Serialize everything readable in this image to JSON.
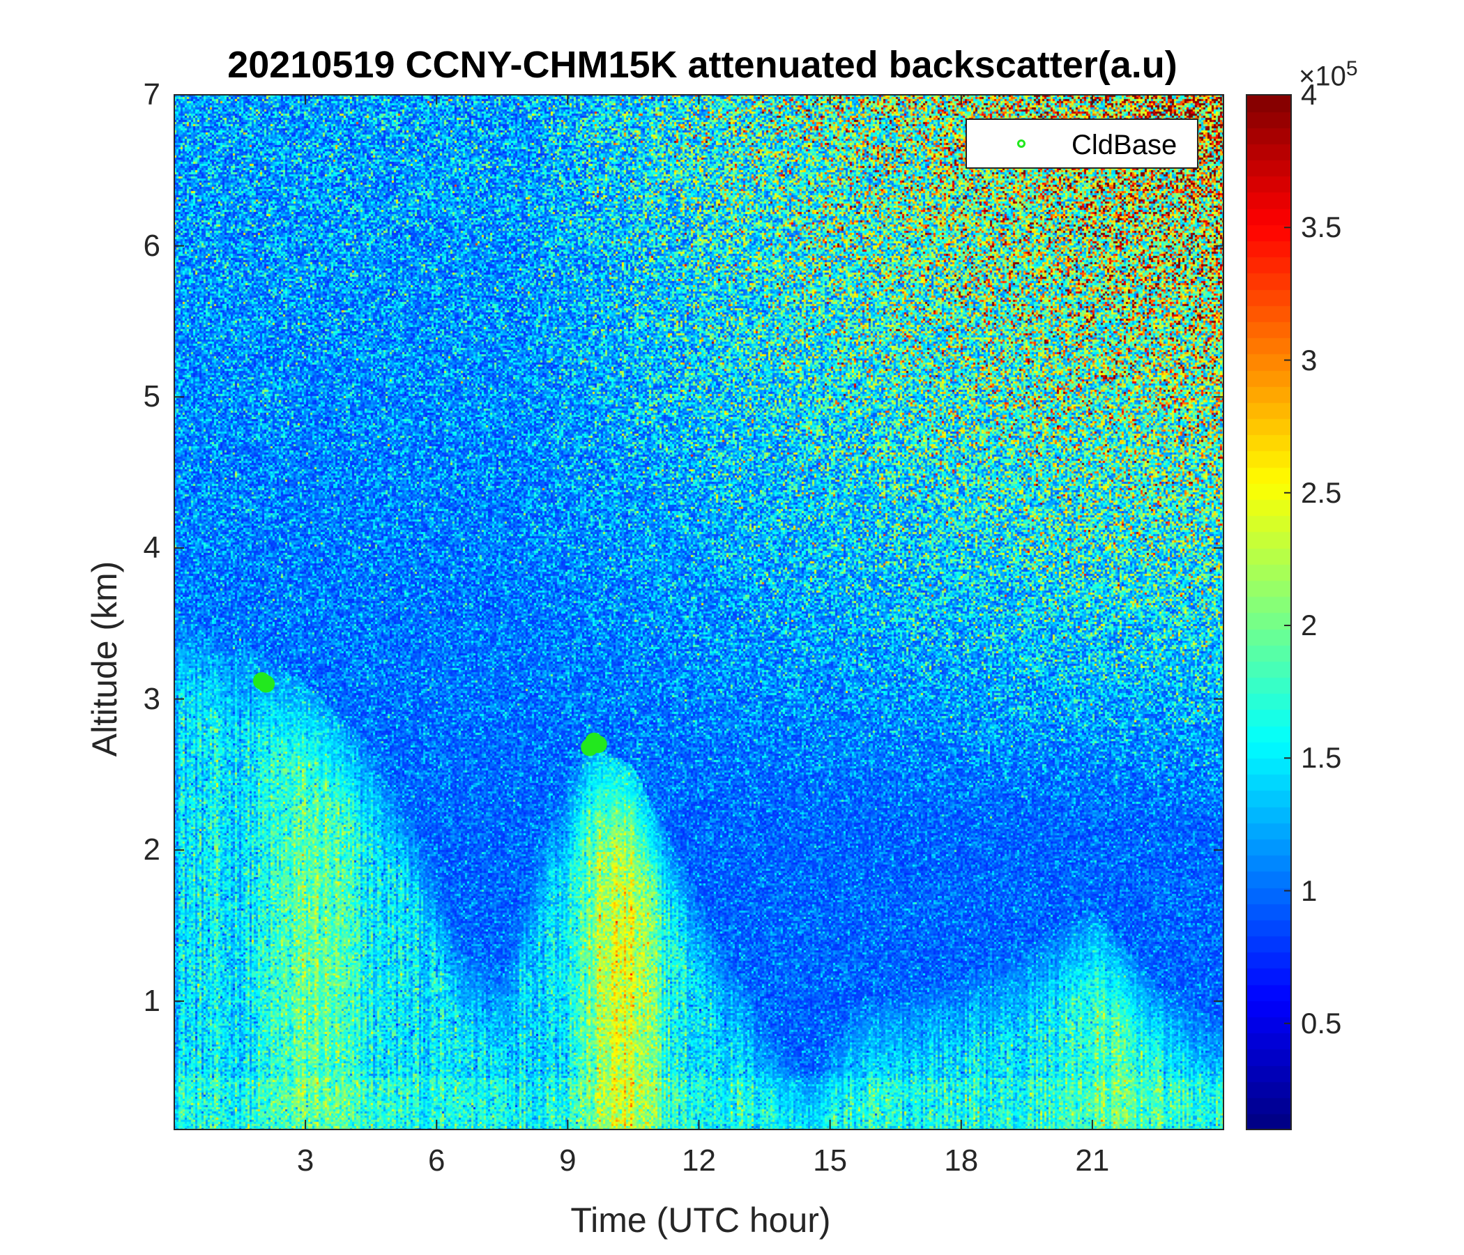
{
  "chart_data": {
    "type": "heatmap",
    "title": "20210519 CCNY-CHM15K attenuated backscatter(a.u)",
    "xlabel": "Time (UTC hour)",
    "ylabel": "Altitude (km)",
    "xlim": [
      0,
      24
    ],
    "ylim": [
      0.15,
      7
    ],
    "x_ticks": [
      3,
      6,
      9,
      12,
      15,
      18,
      21
    ],
    "x_tick_labels": [
      "3",
      "6",
      "9",
      "12",
      "15",
      "18",
      "21"
    ],
    "y_ticks": [
      1,
      2,
      3,
      4,
      5,
      6,
      7
    ],
    "y_tick_labels": [
      "1",
      "2",
      "3",
      "4",
      "5",
      "6",
      "7"
    ],
    "colorbar": {
      "colormap": "jet",
      "clim": [
        0.1,
        4
      ],
      "ticks": [
        0.5,
        1,
        1.5,
        2,
        2.5,
        3,
        3.5,
        4
      ],
      "tick_labels": [
        "0.5",
        "1",
        "1.5",
        "2",
        "2.5",
        "3",
        "3.5",
        "4"
      ],
      "exponent_label": "×10",
      "exponent_power": "5"
    },
    "aerosol_layer_top_km": [
      {
        "x": 0,
        "y": 3.6
      },
      {
        "x": 2,
        "y": 3.3
      },
      {
        "x": 3,
        "y": 3.1
      },
      {
        "x": 4.5,
        "y": 2.7
      },
      {
        "x": 5.5,
        "y": 2.2
      },
      {
        "x": 6.5,
        "y": 1.4
      },
      {
        "x": 7.5,
        "y": 1.2
      },
      {
        "x": 8.5,
        "y": 2.2
      },
      {
        "x": 9.5,
        "y": 2.7
      },
      {
        "x": 10.5,
        "y": 2.55
      },
      {
        "x": 11.5,
        "y": 2.0
      },
      {
        "x": 12.5,
        "y": 1.4
      },
      {
        "x": 13.5,
        "y": 0.9
      },
      {
        "x": 14.5,
        "y": 0.5
      },
      {
        "x": 15.5,
        "y": 1.0
      },
      {
        "x": 17,
        "y": 1.1
      },
      {
        "x": 19,
        "y": 1.3
      },
      {
        "x": 21,
        "y": 1.6
      },
      {
        "x": 22.5,
        "y": 1.1
      },
      {
        "x": 24,
        "y": 0.9
      }
    ],
    "series": [
      {
        "name": "CldBase",
        "marker": "circle",
        "color": "#22e81e",
        "points": [
          {
            "x": 2.0,
            "y": 3.12
          },
          {
            "x": 2.1,
            "y": 3.1
          },
          {
            "x": 9.5,
            "y": 2.68
          },
          {
            "x": 9.6,
            "y": 2.72
          },
          {
            "x": 9.7,
            "y": 2.7
          }
        ]
      }
    ],
    "legend": {
      "placement": "top-right",
      "entries": [
        "CldBase"
      ]
    }
  }
}
